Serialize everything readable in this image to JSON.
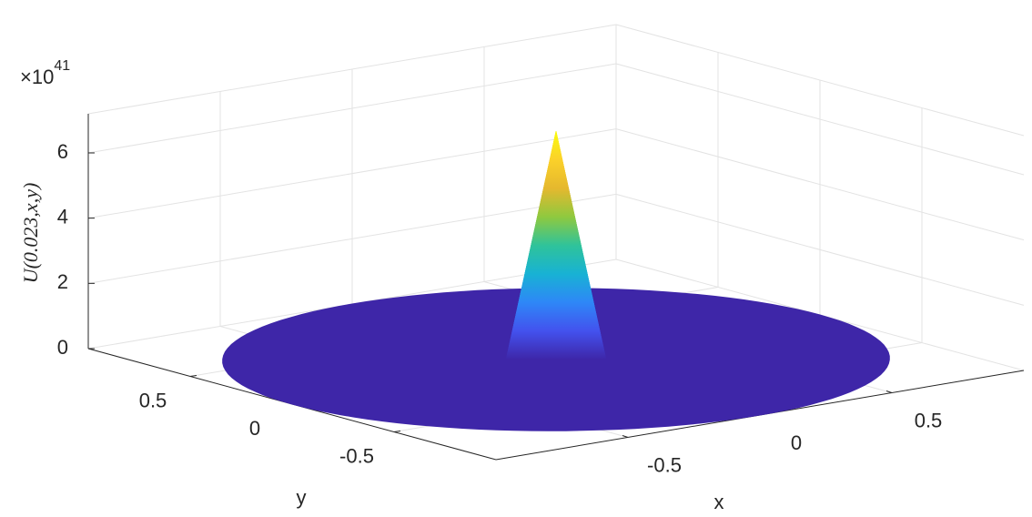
{
  "chart_data": {
    "type": "surface",
    "xlabel": "x",
    "ylabel": "y",
    "zlabel": "U(0.023,x,y)",
    "xlim": [
      -1,
      1
    ],
    "ylim": [
      -1,
      1
    ],
    "zlim": [
      0,
      7.2
    ],
    "xticks": [
      -0.5,
      0,
      0.5
    ],
    "yticks": [
      -0.5,
      0,
      0.5
    ],
    "zticks": [
      0,
      2,
      4,
      6
    ],
    "z_multiplier": {
      "base": "×10",
      "exponent": "41"
    },
    "peak": 7,
    "grid": true,
    "colormap": [
      "#3e26a8",
      "#4352ee",
      "#2e87f7",
      "#18b2d4",
      "#2fc39a",
      "#8fc93f",
      "#e5b82e",
      "#fbd12a",
      "#f9fb0e"
    ]
  }
}
